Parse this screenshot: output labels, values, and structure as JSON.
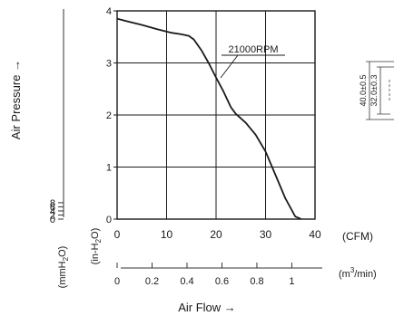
{
  "chart_data": {
    "type": "line",
    "series": [
      {
        "name": "21000RPM",
        "points": [
          [
            0,
            3.85
          ],
          [
            2,
            3.8
          ],
          [
            5,
            3.73
          ],
          [
            8,
            3.65
          ],
          [
            11,
            3.58
          ],
          [
            13,
            3.55
          ],
          [
            14.5,
            3.52
          ],
          [
            15.5,
            3.45
          ],
          [
            17,
            3.25
          ],
          [
            18.5,
            3.0
          ],
          [
            20,
            2.72
          ],
          [
            21.5,
            2.45
          ],
          [
            23,
            2.15
          ],
          [
            24,
            2.02
          ],
          [
            26,
            1.85
          ],
          [
            28,
            1.62
          ],
          [
            30,
            1.3
          ],
          [
            32,
            0.85
          ],
          [
            34,
            0.4
          ],
          [
            36,
            0.05
          ],
          [
            37.2,
            0.0
          ]
        ]
      }
    ],
    "x_primary": {
      "unit": "(CFM)",
      "range": [
        0,
        40
      ],
      "ticks": [
        "0",
        "10",
        "20",
        "30",
        "40"
      ]
    },
    "x_secondary": {
      "unit_base": "(m",
      "unit_sup": "3",
      "unit_end": "/min)",
      "range": [
        0,
        1.1327
      ],
      "ticks": [
        "0",
        "0.2",
        "0.4",
        "0.6",
        "0.8",
        "1"
      ]
    },
    "y_primary": {
      "unit_base": "(in-H",
      "unit_sub": "2",
      "unit_end": "O)",
      "range": [
        0,
        4
      ],
      "ticks": [
        "0",
        "1",
        "2",
        "3",
        "4"
      ]
    },
    "y_secondary": {
      "unit_base": "(mmH",
      "unit_sub": "2",
      "unit_end": "O)",
      "range": [
        0,
        101.6
      ],
      "ticks": [
        "0",
        "2",
        "4",
        "6",
        "8"
      ]
    },
    "xlabel": "Air Flow →",
    "ylabel": "Air Pressure →",
    "grid": true
  },
  "dimension_labels": [
    "40.0±0.5",
    "32.0±0.3"
  ]
}
